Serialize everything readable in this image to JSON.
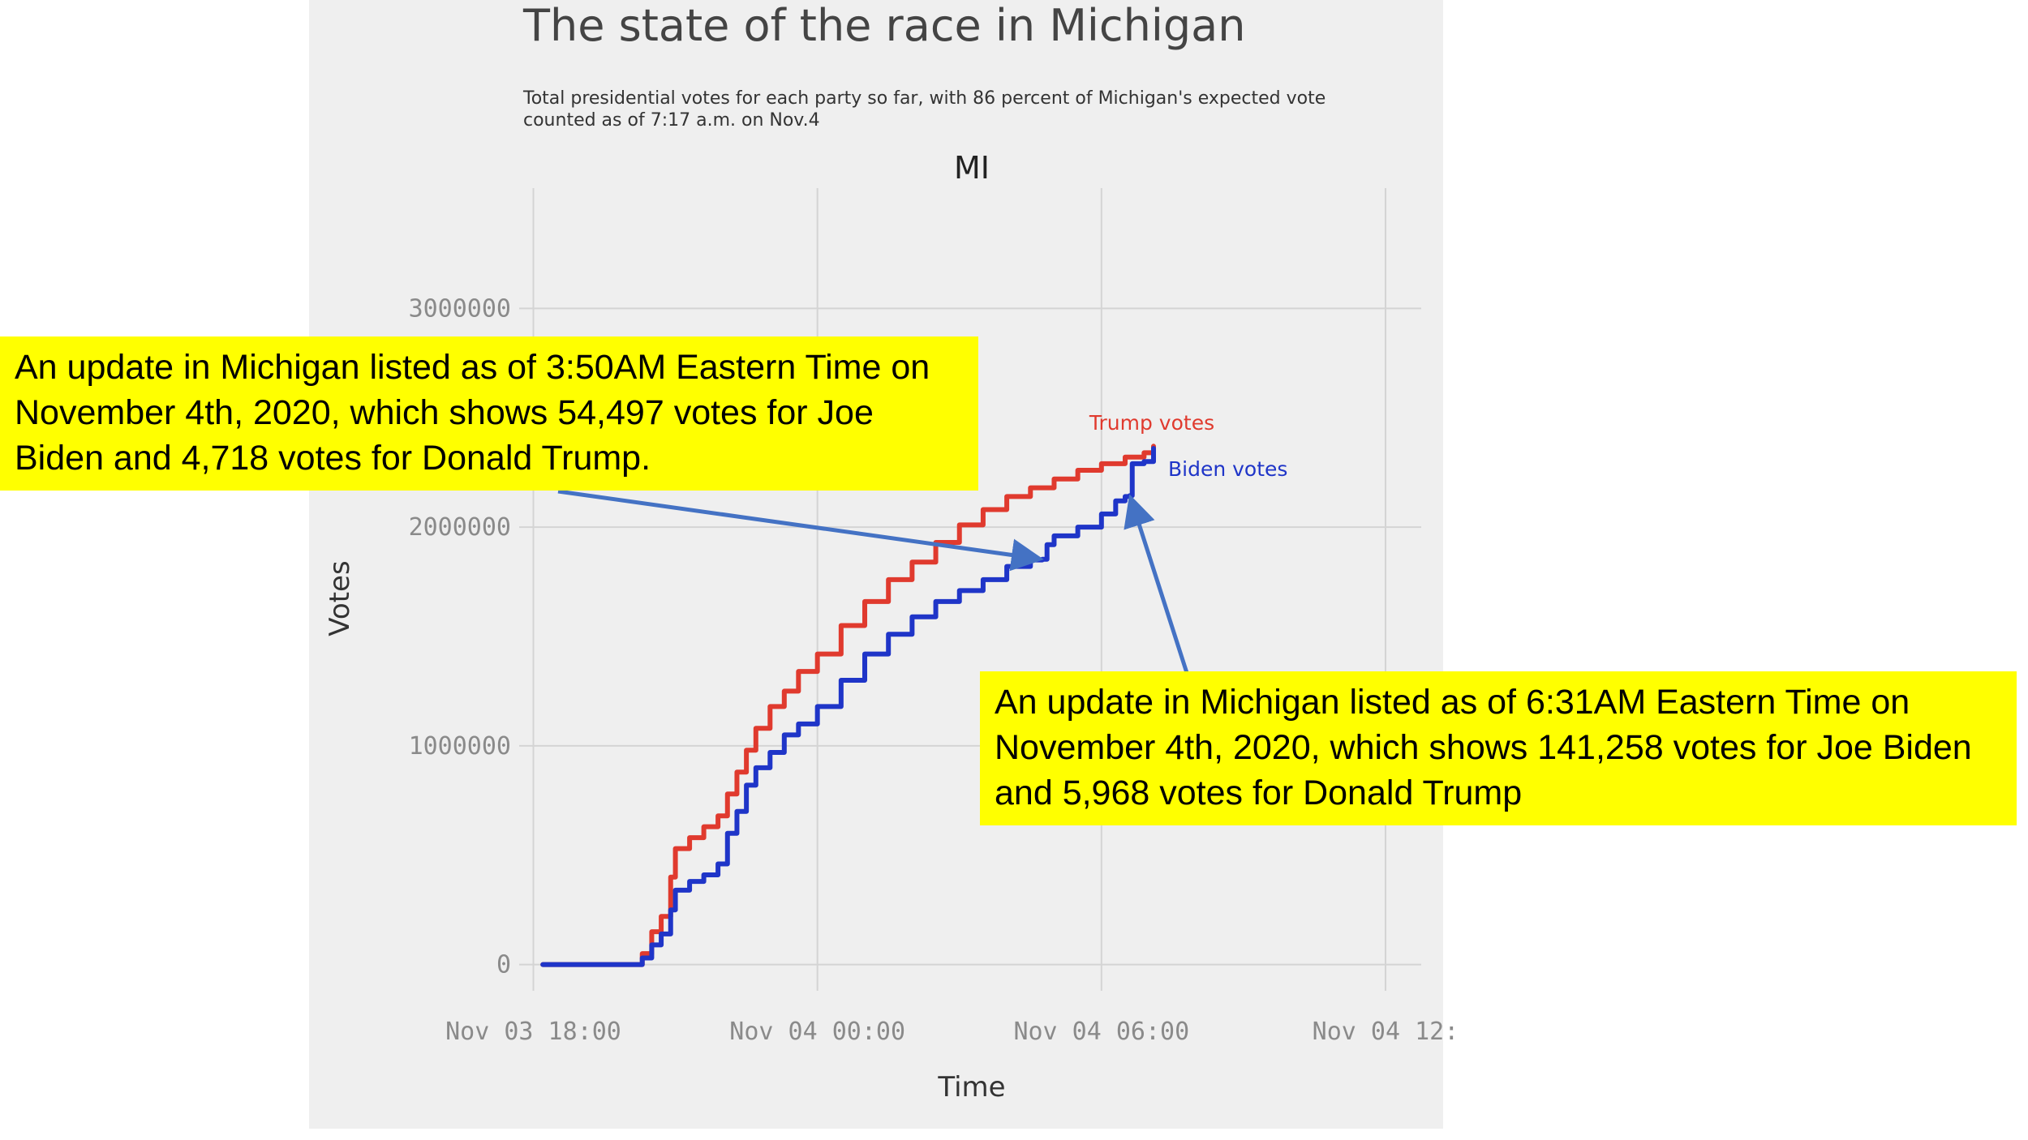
{
  "header": {
    "title": "The state of the race in Michigan",
    "subtitle": "Total presidential votes for each party so far, with 86 percent of Michigan's expected vote counted as of 7:17 a.m. on Nov.4"
  },
  "chart_data": {
    "type": "line",
    "title": "MI",
    "xlabel": "Time",
    "ylabel": "Votes",
    "x_unit": "hours since Nov 03 18:00",
    "xlim": [
      -0.3,
      19.2
    ],
    "ylim": [
      -120000,
      3550000
    ],
    "x_ticks": [
      {
        "x": 0,
        "label": "Nov 03 18:00"
      },
      {
        "x": 6,
        "label": "Nov 04 00:00"
      },
      {
        "x": 12,
        "label": "Nov 04 06:00"
      },
      {
        "x": 18,
        "label": "Nov 04 12:"
      }
    ],
    "y_ticks": [
      {
        "y": 0,
        "label": "0"
      },
      {
        "y": 1000000,
        "label": "1000000"
      },
      {
        "y": 2000000,
        "label": "2000000"
      },
      {
        "y": 3000000,
        "label": "3000000"
      }
    ],
    "grid": true,
    "series": [
      {
        "name": "Trump votes",
        "color": "#e03a2e",
        "points": [
          [
            0.2,
            0
          ],
          [
            2,
            0
          ],
          [
            2.3,
            50000
          ],
          [
            2.5,
            150000
          ],
          [
            2.7,
            220000
          ],
          [
            2.9,
            400000
          ],
          [
            3.0,
            530000
          ],
          [
            3.3,
            580000
          ],
          [
            3.6,
            630000
          ],
          [
            3.9,
            680000
          ],
          [
            4.1,
            780000
          ],
          [
            4.3,
            880000
          ],
          [
            4.5,
            980000
          ],
          [
            4.7,
            1080000
          ],
          [
            5.0,
            1180000
          ],
          [
            5.3,
            1250000
          ],
          [
            5.6,
            1340000
          ],
          [
            6.0,
            1420000
          ],
          [
            6.5,
            1550000
          ],
          [
            7.0,
            1660000
          ],
          [
            7.5,
            1760000
          ],
          [
            8.0,
            1840000
          ],
          [
            8.5,
            1930000
          ],
          [
            9.0,
            2010000
          ],
          [
            9.5,
            2080000
          ],
          [
            10.0,
            2140000
          ],
          [
            10.5,
            2180000
          ],
          [
            11.0,
            2220000
          ],
          [
            11.5,
            2260000
          ],
          [
            12.0,
            2290000
          ],
          [
            12.5,
            2320000
          ],
          [
            12.9,
            2340000
          ],
          [
            13.1,
            2370000
          ]
        ]
      },
      {
        "name": "Biden votes",
        "color": "#1f35c8",
        "points": [
          [
            0.2,
            0
          ],
          [
            2,
            0
          ],
          [
            2.3,
            30000
          ],
          [
            2.5,
            90000
          ],
          [
            2.7,
            140000
          ],
          [
            2.9,
            250000
          ],
          [
            3.0,
            340000
          ],
          [
            3.3,
            380000
          ],
          [
            3.6,
            410000
          ],
          [
            3.9,
            460000
          ],
          [
            4.1,
            600000
          ],
          [
            4.3,
            700000
          ],
          [
            4.5,
            820000
          ],
          [
            4.7,
            900000
          ],
          [
            5.0,
            970000
          ],
          [
            5.3,
            1050000
          ],
          [
            5.6,
            1100000
          ],
          [
            6.0,
            1180000
          ],
          [
            6.5,
            1300000
          ],
          [
            7.0,
            1420000
          ],
          [
            7.5,
            1510000
          ],
          [
            8.0,
            1590000
          ],
          [
            8.5,
            1660000
          ],
          [
            9.0,
            1710000
          ],
          [
            9.5,
            1760000
          ],
          [
            10.0,
            1820000
          ],
          [
            10.5,
            1850000
          ],
          [
            10.75,
            1853000
          ],
          [
            10.85,
            1920000
          ],
          [
            11.0,
            1960000
          ],
          [
            11.5,
            2000000
          ],
          [
            12.0,
            2060000
          ],
          [
            12.3,
            2120000
          ],
          [
            12.5,
            2140000
          ],
          [
            12.6,
            2144000
          ],
          [
            12.65,
            2290000
          ],
          [
            12.9,
            2300000
          ],
          [
            13.1,
            2360000
          ]
        ]
      }
    ],
    "series_labels": [
      {
        "series": "Trump votes",
        "text": "Trump votes"
      },
      {
        "series": "Biden votes",
        "text": "Biden votes"
      }
    ],
    "annotations": [
      {
        "id": "left",
        "text": "An update in Michigan listed as of 3:50AM Eastern Time on November 4th, 2020, which shows 54,497 votes for Joe Biden and 4,718 votes for Donald Trump.",
        "target": {
          "x": 10.75,
          "y": 1853000
        }
      },
      {
        "id": "right",
        "text": "An update in Michigan listed as of 6:31AM Eastern Time on November 4th, 2020, which shows 141,258 votes for Joe Biden and 5,968 votes for Donald Trump",
        "target": {
          "x": 12.6,
          "y": 2144000
        }
      }
    ],
    "arrow_color": "#4472c4"
  }
}
